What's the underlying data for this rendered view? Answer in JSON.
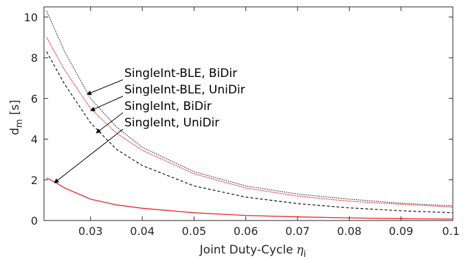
{
  "chart_data": {
    "type": "line",
    "xlabel": "Joint Duty-Cycle",
    "xlabel_symbol": "η",
    "xlabel_subscript": "i",
    "ylabel": "d",
    "ylabel_subscript": "m",
    "ylabel_unit": "[s]",
    "xlim": [
      0.021,
      0.1
    ],
    "ylim": [
      0,
      10.5
    ],
    "xticks": [
      0.03,
      0.04,
      0.05,
      0.06,
      0.07,
      0.08,
      0.09,
      0.1
    ],
    "xtick_labels": [
      "0.03",
      "0.04",
      "0.05",
      "0.06",
      "0.07",
      "0.08",
      "0.09",
      "0.1"
    ],
    "yticks": [
      0,
      2,
      4,
      6,
      8,
      10
    ],
    "ytick_labels": [
      "0",
      "2",
      "4",
      "6",
      "8",
      "10"
    ],
    "grid": false,
    "legend": "none",
    "series": [
      {
        "name": "SingleInt-BLE, BiDir",
        "color": "#555566",
        "dash": "2,1.2",
        "x": [
          0.0215,
          0.025,
          0.03,
          0.035,
          0.04,
          0.05,
          0.06,
          0.07,
          0.08,
          0.09,
          0.1
        ],
        "y": [
          10.3,
          8.3,
          6.0,
          4.6,
          3.6,
          2.4,
          1.7,
          1.3,
          1.05,
          0.85,
          0.72
        ]
      },
      {
        "name": "SingleInt-BLE, UniDir",
        "color": "#ee2222",
        "dash": "1.5,1",
        "x": [
          0.0215,
          0.025,
          0.03,
          0.035,
          0.04,
          0.05,
          0.06,
          0.07,
          0.08,
          0.09,
          0.1
        ],
        "y": [
          9.0,
          7.4,
          5.5,
          4.3,
          3.45,
          2.3,
          1.6,
          1.2,
          0.95,
          0.8,
          0.66
        ]
      },
      {
        "name": "SingleInt, BiDir",
        "color": "#111111",
        "dash": "4,3",
        "x": [
          0.0215,
          0.025,
          0.03,
          0.035,
          0.04,
          0.05,
          0.06,
          0.07,
          0.08,
          0.09,
          0.1
        ],
        "y": [
          8.3,
          6.7,
          4.8,
          3.5,
          2.7,
          1.7,
          1.15,
          0.83,
          0.62,
          0.48,
          0.38
        ]
      },
      {
        "name": "SingleInt, UniDir",
        "color": "#ee2222",
        "dash": "",
        "x": [
          0.0215,
          0.023,
          0.025,
          0.03,
          0.035,
          0.04,
          0.05,
          0.06,
          0.07,
          0.08,
          0.09,
          0.1
        ],
        "y": [
          2.1,
          1.9,
          1.6,
          1.05,
          0.77,
          0.6,
          0.38,
          0.25,
          0.18,
          0.13,
          0.09,
          0.07
        ]
      }
    ],
    "annotations": [
      {
        "text": "SingleInt-BLE, BiDir",
        "series": 0,
        "target_x": 0.0293,
        "target_y": 6.2
      },
      {
        "text": "SingleInt-BLE, UniDir",
        "series": 1,
        "target_x": 0.03,
        "target_y": 5.4
      },
      {
        "text": "SingleInt, BiDir",
        "series": 2,
        "target_x": 0.0311,
        "target_y": 4.3
      },
      {
        "text": "SingleInt, UniDir",
        "series": 3,
        "target_x": 0.023,
        "target_y": 1.85
      }
    ]
  }
}
